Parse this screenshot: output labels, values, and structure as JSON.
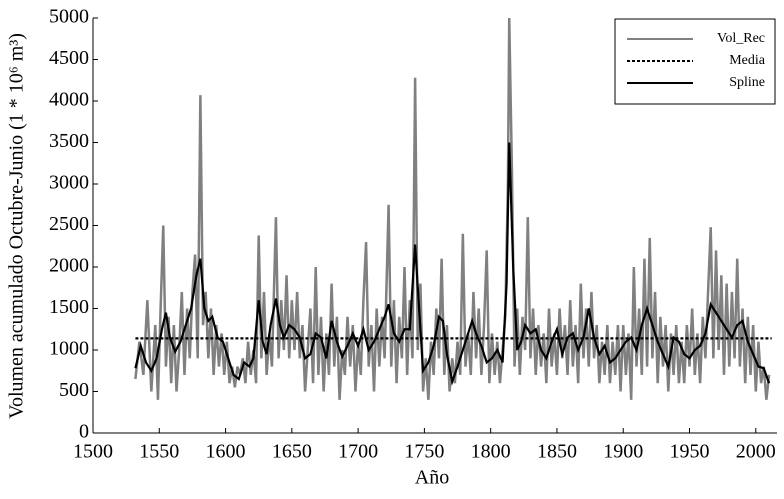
{
  "chart_data": {
    "type": "line",
    "ylabel": "Volumen acumulado Octubre-Junio (1 * 10⁶ m³)",
    "xlabel": "Año",
    "xlim": [
      1500,
      2016
    ],
    "xticks": [
      1500,
      1550,
      1600,
      1650,
      1700,
      1750,
      1800,
      1850,
      1900,
      1950,
      2000
    ],
    "ylim": [
      0,
      5000
    ],
    "yticks": [
      0,
      500,
      1000,
      1500,
      2000,
      2500,
      3000,
      3500,
      4000,
      4500,
      5000
    ],
    "legend": "top-right",
    "series": [
      {
        "name": "Vol_Rec",
        "color": "#808080",
        "style": "solid",
        "x": [
          1532,
          1535,
          1538,
          1541,
          1544,
          1547,
          1549,
          1551,
          1553,
          1555,
          1557,
          1559,
          1561,
          1563,
          1565,
          1567,
          1569,
          1571,
          1573,
          1575,
          1577,
          1579,
          1581,
          1583,
          1585,
          1587,
          1589,
          1591,
          1593,
          1595,
          1597,
          1599,
          1601,
          1603,
          1605,
          1607,
          1609,
          1611,
          1613,
          1615,
          1617,
          1619,
          1621,
          1623,
          1625,
          1627,
          1629,
          1631,
          1633,
          1635,
          1638,
          1640,
          1642,
          1644,
          1646,
          1648,
          1650,
          1652,
          1654,
          1656,
          1658,
          1660,
          1662,
          1664,
          1666,
          1668,
          1670,
          1672,
          1674,
          1676,
          1678,
          1680,
          1682,
          1684,
          1686,
          1688,
          1690,
          1692,
          1694,
          1696,
          1698,
          1700,
          1702,
          1704,
          1706,
          1708,
          1710,
          1712,
          1714,
          1716,
          1718,
          1720,
          1723,
          1725,
          1727,
          1729,
          1731,
          1733,
          1735,
          1737,
          1739,
          1741,
          1743,
          1745,
          1747,
          1749,
          1751,
          1753,
          1755,
          1757,
          1759,
          1761,
          1763,
          1765,
          1767,
          1769,
          1771,
          1773,
          1775,
          1777,
          1779,
          1781,
          1783,
          1785,
          1787,
          1789,
          1791,
          1793,
          1795,
          1797,
          1799,
          1801,
          1803,
          1805,
          1807,
          1809,
          1811,
          1813,
          1814,
          1816,
          1818,
          1820,
          1822,
          1824,
          1826,
          1828,
          1830,
          1832,
          1834,
          1836,
          1838,
          1840,
          1842,
          1844,
          1846,
          1848,
          1850,
          1852,
          1854,
          1856,
          1858,
          1860,
          1862,
          1864,
          1866,
          1868,
          1870,
          1872,
          1874,
          1876,
          1878,
          1880,
          1882,
          1884,
          1886,
          1888,
          1890,
          1892,
          1894,
          1896,
          1898,
          1900,
          1902,
          1904,
          1906,
          1908,
          1910,
          1912,
          1914,
          1916,
          1918,
          1920,
          1922,
          1924,
          1926,
          1928,
          1930,
          1932,
          1934,
          1936,
          1938,
          1940,
          1942,
          1944,
          1946,
          1948,
          1950,
          1952,
          1954,
          1956,
          1958,
          1960,
          1962,
          1964,
          1966,
          1968,
          1970,
          1972,
          1974,
          1976,
          1978,
          1980,
          1982,
          1984,
          1986,
          1988,
          1990,
          1992,
          1994,
          1996,
          1998,
          2000,
          2002,
          2004,
          2006,
          2008,
          2010
        ],
        "values": [
          650,
          1100,
          700,
          1600,
          500,
          1300,
          400,
          1500,
          2500,
          800,
          1400,
          600,
          1300,
          500,
          1000,
          1700,
          700,
          1500,
          900,
          1700,
          2150,
          900,
          4070,
          1300,
          1700,
          900,
          1500,
          700,
          1300,
          800,
          1200,
          700,
          1100,
          600,
          800,
          550,
          800,
          700,
          900,
          600,
          1100,
          700,
          1000,
          600,
          2380,
          900,
          1700,
          700,
          1200,
          800,
          2600,
          900,
          1600,
          1000,
          1900,
          900,
          1600,
          1000,
          1700,
          900,
          1300,
          500,
          1000,
          1500,
          600,
          2000,
          700,
          1400,
          500,
          1200,
          700,
          1800,
          800,
          1400,
          400,
          1000,
          700,
          1400,
          800,
          1300,
          500,
          1100,
          700,
          1600,
          2300,
          800,
          1300,
          500,
          1500,
          800,
          1400,
          900,
          2750,
          800,
          1600,
          600,
          1400,
          900,
          2000,
          700,
          1600,
          900,
          4280,
          1000,
          1800,
          500,
          900,
          400,
          1100,
          700,
          1500,
          900,
          2100,
          700,
          1300,
          500,
          900,
          600,
          1100,
          700,
          2400,
          800,
          1200,
          700,
          1700,
          900,
          1500,
          700,
          1300,
          2200,
          600,
          1200,
          700,
          1100,
          600,
          1000,
          1400,
          3000,
          5000,
          3200,
          800,
          1500,
          700,
          1400,
          1000,
          2600,
          900,
          1500,
          700,
          1300,
          800,
          1200,
          600,
          1500,
          800,
          1200,
          700,
          1500,
          900,
          1300,
          700,
          1600,
          800,
          1300,
          600,
          1800,
          900,
          1500,
          800,
          1700,
          900,
          1300,
          600,
          1100,
          700,
          1300,
          600,
          1100,
          700,
          1300,
          500,
          1300,
          700,
          1200,
          400,
          2000,
          800,
          1500,
          700,
          2100,
          800,
          2350,
          900,
          1700,
          600,
          1400,
          800,
          1300,
          500,
          1200,
          700,
          1300,
          600,
          1100,
          600,
          1300,
          800,
          1500,
          700,
          1200,
          600,
          1400,
          900,
          1700,
          2480,
          900,
          2200,
          1000,
          1900,
          700,
          1800,
          800,
          1700,
          900,
          2100,
          800,
          1500,
          600,
          1400,
          700,
          1300,
          500,
          1100,
          600,
          800,
          400,
          700
        ]
      },
      {
        "name": "Media",
        "color": "#000000",
        "style": "dashed",
        "x": [
          1532,
          2012
        ],
        "values": [
          1140,
          1140
        ]
      },
      {
        "name": "Spline",
        "color": "#000000",
        "style": "solid",
        "x": [
          1532,
          1536,
          1540,
          1544,
          1548,
          1552,
          1555,
          1558,
          1562,
          1566,
          1570,
          1574,
          1578,
          1581,
          1584,
          1587,
          1590,
          1594,
          1598,
          1602,
          1606,
          1610,
          1614,
          1618,
          1621,
          1625,
          1628,
          1631,
          1634,
          1638,
          1641,
          1644,
          1648,
          1652,
          1656,
          1660,
          1664,
          1668,
          1672,
          1676,
          1680,
          1684,
          1688,
          1692,
          1696,
          1700,
          1704,
          1708,
          1712,
          1716,
          1720,
          1723,
          1727,
          1731,
          1735,
          1739,
          1743,
          1746,
          1749,
          1753,
          1757,
          1761,
          1764,
          1767,
          1771,
          1775,
          1779,
          1782,
          1786,
          1789,
          1793,
          1797,
          1801,
          1805,
          1809,
          1812,
          1814,
          1817,
          1820,
          1823,
          1826,
          1830,
          1834,
          1838,
          1842,
          1846,
          1850,
          1854,
          1858,
          1862,
          1866,
          1870,
          1874,
          1878,
          1882,
          1886,
          1890,
          1894,
          1898,
          1902,
          1906,
          1910,
          1914,
          1918,
          1922,
          1926,
          1930,
          1934,
          1938,
          1942,
          1946,
          1950,
          1954,
          1958,
          1962,
          1966,
          1970,
          1974,
          1978,
          1982,
          1986,
          1990,
          1994,
          1998,
          2002,
          2006,
          2010
        ],
        "values": [
          780,
          1050,
          850,
          750,
          900,
          1250,
          1450,
          1150,
          980,
          1100,
          1300,
          1500,
          1900,
          2100,
          1500,
          1350,
          1400,
          1150,
          1100,
          900,
          700,
          650,
          850,
          800,
          900,
          1600,
          1100,
          950,
          1300,
          1620,
          1300,
          1150,
          1300,
          1250,
          1150,
          900,
          950,
          1200,
          1150,
          900,
          1350,
          1100,
          920,
          1050,
          1200,
          1050,
          1250,
          1000,
          1100,
          1250,
          1400,
          1550,
          1200,
          1100,
          1250,
          1250,
          2270,
          1500,
          750,
          850,
          1050,
          1400,
          1350,
          950,
          620,
          800,
          1000,
          1150,
          1350,
          1200,
          1050,
          850,
          900,
          1000,
          850,
          1800,
          3500,
          2000,
          1000,
          1100,
          1300,
          1200,
          1250,
          1000,
          900,
          1100,
          1250,
          950,
          1150,
          1200,
          1000,
          1150,
          1500,
          1150,
          950,
          1050,
          850,
          900,
          1000,
          1100,
          1150,
          1000,
          1300,
          1500,
          1300,
          1100,
          950,
          800,
          1150,
          1100,
          950,
          900,
          1000,
          1050,
          1200,
          1550,
          1450,
          1350,
          1250,
          1150,
          1300,
          1350,
          1100,
          950,
          800,
          780,
          600
        ]
      }
    ]
  }
}
